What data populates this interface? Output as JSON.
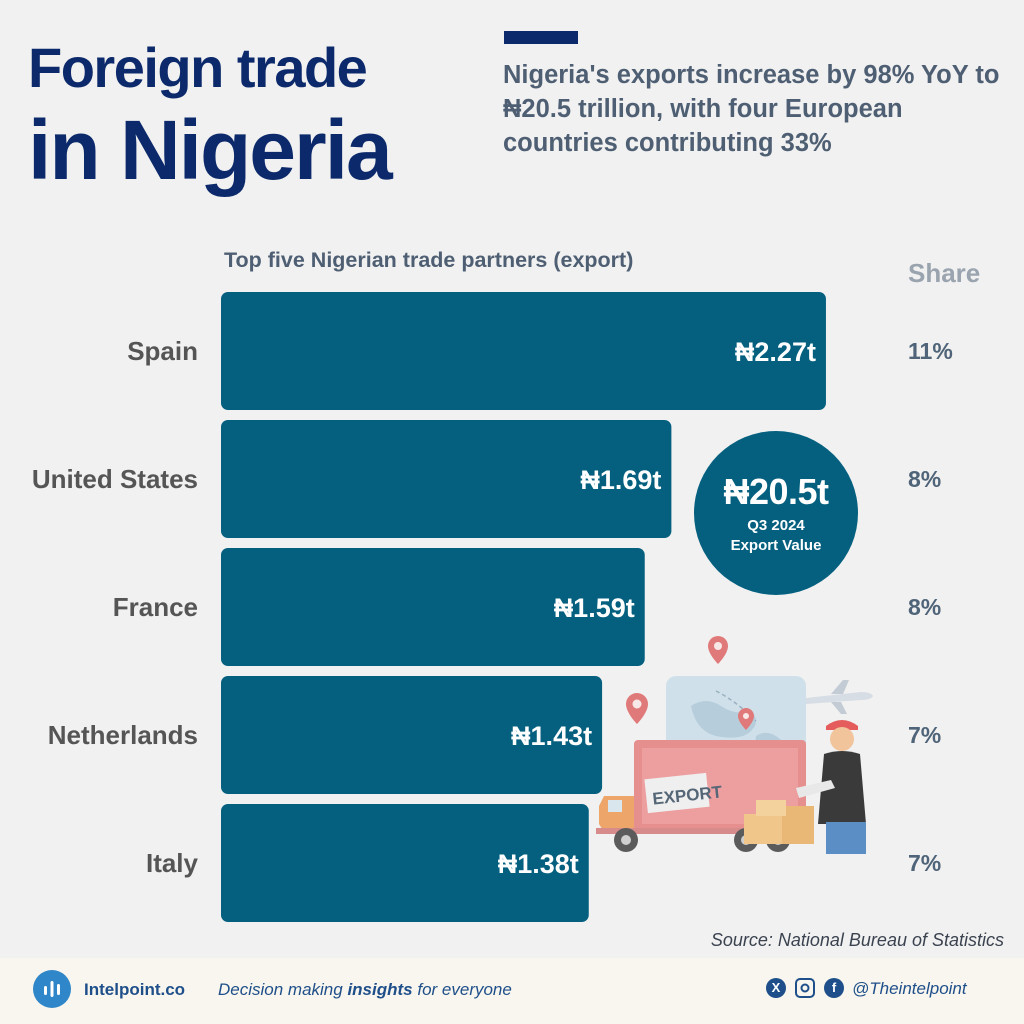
{
  "title_line1": "Foreign trade",
  "title_line2": "in Nigeria",
  "subtitle": "Nigeria's exports increase by 98% YoY to ₦20.5 trillion, with four European countries contributing 33%",
  "share_header": "Share",
  "badge": {
    "value": "₦20.5t",
    "period": "Q3 2024",
    "caption": "Export Value"
  },
  "illustration": {
    "sign_text": "EXPORT"
  },
  "source": "Source: National Bureau of Statistics",
  "footer": {
    "brand": "Intelpoint.co",
    "tagline_pre": "Decision making ",
    "tagline_bold": "insights",
    "tagline_post": " for everyone",
    "handle": "@Theintelpoint"
  },
  "colors": {
    "bar": "#05607f",
    "title": "#0c2a6b",
    "text": "#4f5f73"
  },
  "icons": [
    "logo-bars-icon",
    "x-icon",
    "instagram-icon",
    "facebook-icon"
  ],
  "chart_data": {
    "type": "bar",
    "orientation": "horizontal",
    "title": "Top five Nigerian trade partners (export)",
    "categories": [
      "Spain",
      "United States",
      "France",
      "Netherlands",
      "Italy"
    ],
    "values": [
      2.27,
      1.69,
      1.59,
      1.43,
      1.38
    ],
    "value_labels": [
      "₦2.27t",
      "₦1.69t",
      "₦1.59t",
      "₦1.43t",
      "₦1.38t"
    ],
    "shares": [
      "11%",
      "8%",
      "8%",
      "7%",
      "7%"
    ]
  }
}
